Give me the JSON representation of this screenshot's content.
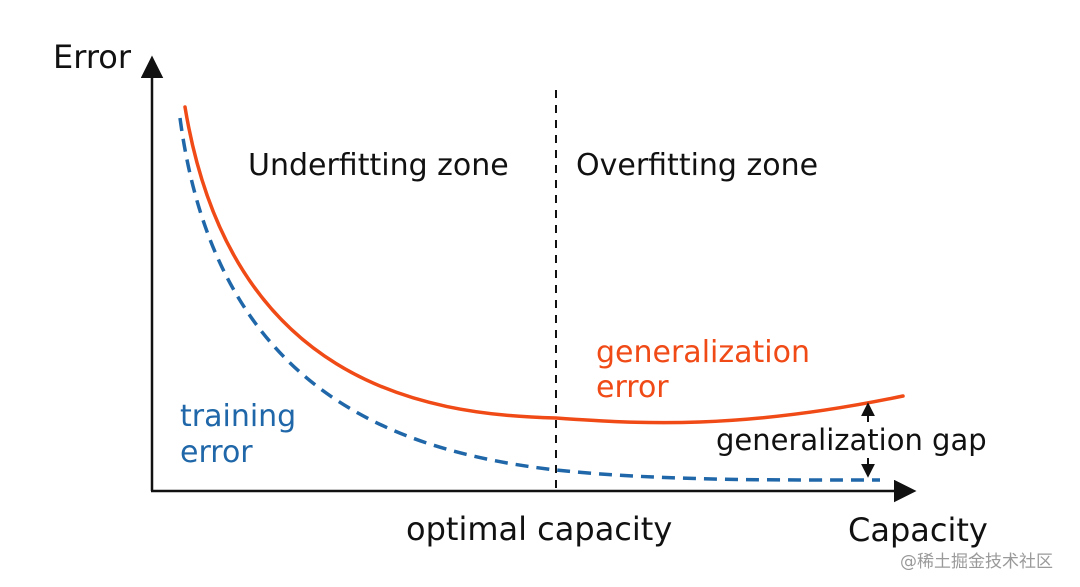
{
  "axes": {
    "y_label": "Error",
    "x_label": "Capacity"
  },
  "zones": {
    "underfitting": "Underfitting zone",
    "overfitting": "Overfitting zone"
  },
  "curves": {
    "generalization": {
      "label_line1": "generalization",
      "label_line2": "error",
      "color": "#f04a17"
    },
    "training": {
      "label_line1": "training",
      "label_line2": "error",
      "color": "#1f67a8"
    }
  },
  "annotations": {
    "optimal_capacity": "optimal capacity",
    "generalization_gap": "generalization gap"
  },
  "watermark": "@稀土掘金技术社区"
}
